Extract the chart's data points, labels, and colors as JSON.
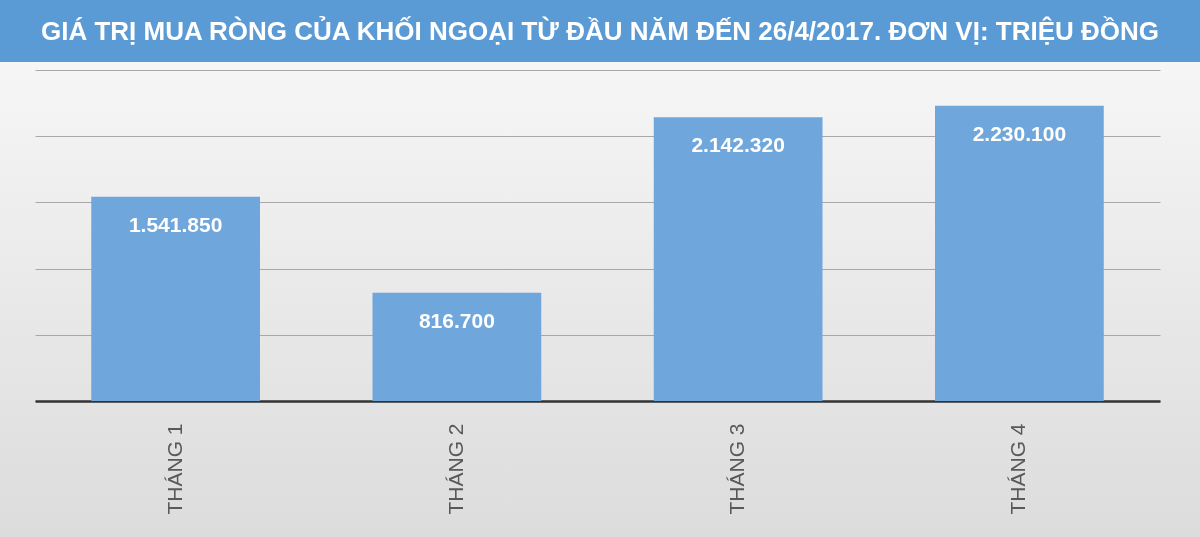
{
  "chart_data": {
    "type": "bar",
    "title": "GIÁ TRỊ MUA RÒNG CỦA KHỐI NGOẠI TỪ ĐẦU NĂM ĐẾN 26/4/2017. ĐƠN VỊ: TRIỆU ĐỒNG",
    "categories": [
      "THÁNG 1",
      "THÁNG 2",
      "THÁNG 3",
      "THÁNG 4"
    ],
    "values": [
      1541850,
      816700,
      2142320,
      2230100
    ],
    "value_labels": [
      "1.541.850",
      "816.700",
      "2.142.320",
      "2.230.100"
    ],
    "color": "#6fa6dc",
    "ylim": [
      0,
      2500000
    ],
    "yticks": [
      {
        "value": 0,
        "label": null
      },
      {
        "value": 500000,
        "label": null
      },
      {
        "value": 1000000,
        "label": null
      },
      {
        "value": 1500000,
        "label": null
      },
      {
        "value": 2000000,
        "label": null
      },
      {
        "value": 2500000,
        "label": null
      }
    ],
    "grid": "y",
    "tick_labels": "x"
  }
}
